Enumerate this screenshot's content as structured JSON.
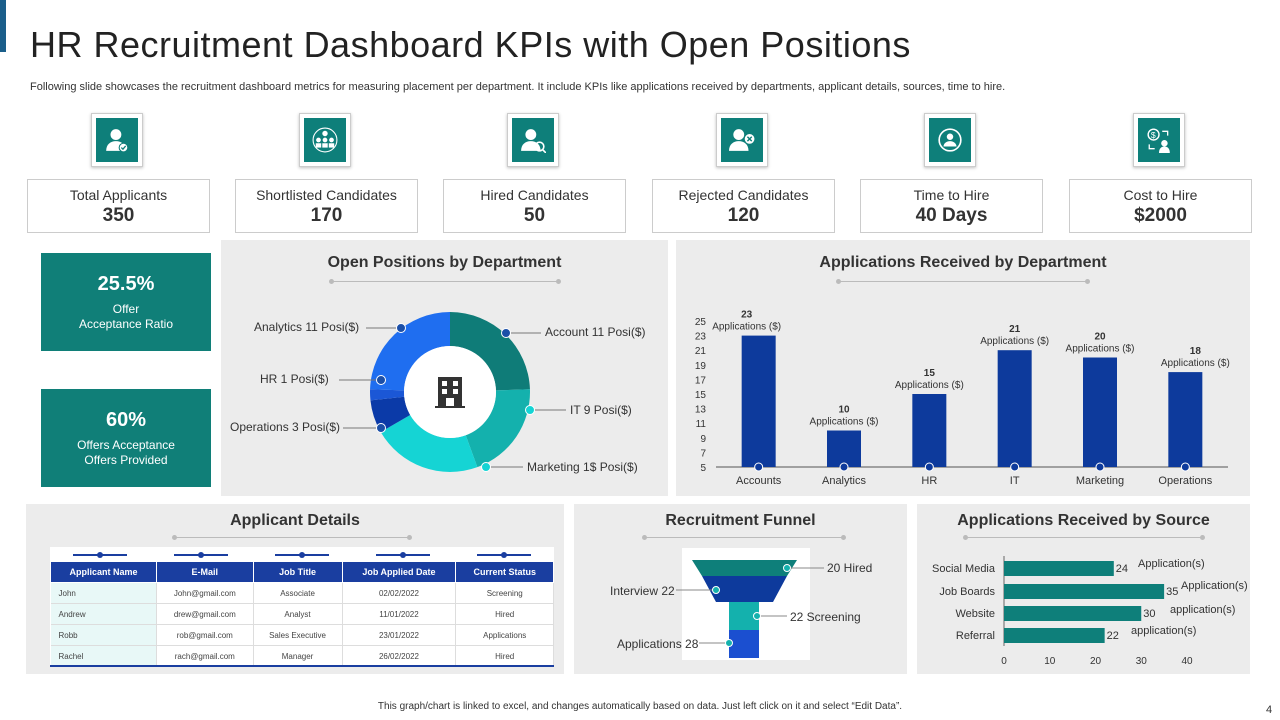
{
  "title": "HR Recruitment Dashboard KPIs with Open Positions",
  "subtitle": "Following slide showcases the recruitment dashboard metrics for measuring placement per department. It include KPIs like applications received by departments, applicant details, sources, time to hire.",
  "kpis": [
    {
      "label": "Total Applicants",
      "value": "350",
      "icon": "user-check-icon"
    },
    {
      "label": "Shortlisted Candidates",
      "value": "170",
      "icon": "group-check-icon"
    },
    {
      "label": "Hired Candidates",
      "value": "50",
      "icon": "user-search-icon"
    },
    {
      "label": "Rejected Candidates",
      "value": "120",
      "icon": "user-reject-icon"
    },
    {
      "label": "Time to Hire",
      "value": "40 Days",
      "icon": "time-cycle-icon"
    },
    {
      "label": "Cost to Hire",
      "value": "$2000",
      "icon": "cost-exchange-icon"
    }
  ],
  "ratios": [
    {
      "value": "25.5%",
      "label_line1": "Offer",
      "label_line2": "Acceptance Ratio"
    },
    {
      "value": "60%",
      "label_line1": "Offers Acceptance",
      "label_line2": "Offers Provided"
    }
  ],
  "open_positions": {
    "title": "Open Positions by Department",
    "labels": [
      "Analytics 11 Posi($)",
      "HR 1 Posi($)",
      "Operations 3 Posi($)",
      "Account 11 Posi($)",
      "IT 9 Posi($)",
      "Marketing 1$ Posi($)"
    ],
    "segment_values": {
      "Account": 11,
      "IT": 9,
      "Marketing": 10,
      "Operations": 3,
      "HR": 1,
      "Analytics": 11
    },
    "colors": {
      "Account": "#0f7c78",
      "IT": "#14b1ad",
      "Marketing": "#15d4d4",
      "Operations": "#0b3aa8",
      "HR": "#1b57d6",
      "Analytics": "#1f6ef0"
    }
  },
  "chart_data": [
    {
      "type": "bar",
      "title": "Applications Received by Department",
      "categories": [
        "Accounts",
        "Analytics",
        "HR",
        "IT",
        "Marketing",
        "Operations"
      ],
      "values": [
        23,
        10,
        15,
        21,
        20,
        18
      ],
      "data_labels": [
        "23",
        "10",
        "15",
        "21",
        "20",
        "18"
      ],
      "data_label_unit": "Applications ($)",
      "yticks": [
        "25",
        "23",
        "21",
        "19",
        "17",
        "15",
        "13",
        "11",
        "9",
        "7",
        "5"
      ],
      "ylim": [
        5,
        25
      ],
      "color": "#0d3a9c"
    },
    {
      "type": "bar",
      "orientation": "horizontal",
      "title": "Applications Received by Source",
      "categories": [
        "Social Media",
        "Job Boards",
        "Website",
        "Referral"
      ],
      "category_labels": [
        "Social Media",
        "Job Boards",
        "Website",
        "Referral"
      ],
      "values": [
        24,
        35,
        30,
        22
      ],
      "data_labels": [
        "24",
        "35",
        "30",
        "22"
      ],
      "unit_labels": [
        "Application(s)",
        "Application(s)",
        "application(s)",
        "application(s)"
      ],
      "xticks": [
        "0",
        "10",
        "20",
        "30",
        "40"
      ],
      "xlim": [
        0,
        40
      ],
      "color": "#0e7f7a"
    },
    {
      "type": "funnel",
      "title": "Recruitment Funnel",
      "stages": [
        {
          "name": "Hired",
          "value": 20,
          "label": "20 Hired"
        },
        {
          "name": "Interview",
          "value": 22,
          "label": "Interview 22"
        },
        {
          "name": "Screening",
          "value": 22,
          "label": "22 Screening"
        },
        {
          "name": "Applications",
          "value": 28,
          "label": "Applications 28"
        }
      ]
    }
  ],
  "applicant_details": {
    "title": "Applicant Details",
    "headers": [
      "Applicant Name",
      "E-Mail",
      "Job Title",
      "Job Applied Date",
      "Current Status"
    ],
    "rows": [
      [
        "John",
        "John@gmail.com",
        "Associate",
        "02/02/2022",
        "Screening"
      ],
      [
        "Andrew",
        "drew@gmail.com",
        "Analyst",
        "11/01/2022",
        "Hired"
      ],
      [
        "Robb",
        "rob@gmail.com",
        "Sales Executive",
        "23/01/2022",
        "Applications"
      ],
      [
        "Rachel",
        "rach@gmail.com",
        "Manager",
        "26/02/2022",
        "Hired"
      ]
    ]
  },
  "footer": "This graph/chart is linked to excel, and changes automatically based on data. Just left click on it and select “Edit Data”.",
  "page_number": "4"
}
